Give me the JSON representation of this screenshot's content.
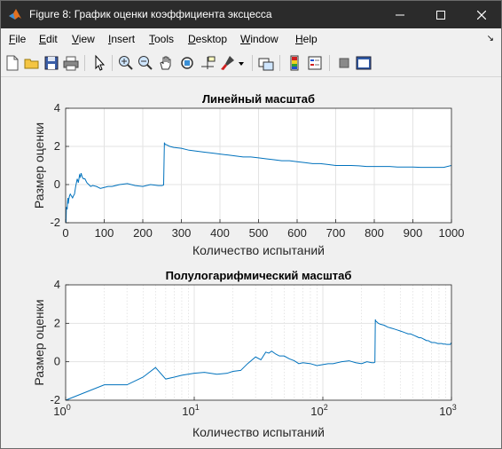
{
  "window": {
    "title": "Figure 8: График оценки коэффициента эксцесса",
    "controls": {
      "minimize": "—",
      "maximize": "☐",
      "close": "✕"
    }
  },
  "menu": {
    "items": [
      "File",
      "Edit",
      "View",
      "Insert",
      "Tools",
      "Desktop",
      "Window",
      "Help"
    ],
    "mnemonics": [
      "F",
      "E",
      "V",
      "I",
      "T",
      "D",
      "W",
      "H"
    ],
    "overflow_arrow": "↘"
  },
  "toolbar": {
    "icons": [
      "new-figure-icon",
      "open-file-icon",
      "save-icon",
      "print-icon",
      "pointer-icon",
      "zoom-in-icon",
      "zoom-out-icon",
      "pan-icon",
      "rotate-3d-icon",
      "data-cursor-icon",
      "brush-icon",
      "brush-dropdown-icon",
      "link-plot-icon",
      "insert-colorbar-icon",
      "insert-legend-icon",
      "hide-plot-tools-icon",
      "show-plot-tools-icon"
    ]
  },
  "colors": {
    "line": "#0072bd",
    "titlebar": "#2b2b2b",
    "background": "#f0f0f0"
  },
  "chart_data": [
    {
      "type": "line",
      "title": "Линейный масштаб",
      "xlabel": "Количество испытаний",
      "ylabel": "Размер оценки",
      "xlim": [
        0,
        1000
      ],
      "ylim": [
        -2,
        4
      ],
      "xscale": "linear",
      "grid": true,
      "xticks": [
        "0",
        "100",
        "200",
        "300",
        "400",
        "500",
        "600",
        "700",
        "800",
        "900",
        "1000"
      ],
      "yticks": [
        "-2",
        "0",
        "2",
        "4"
      ],
      "series": [
        {
          "x": [
            1,
            2,
            3,
            4,
            5,
            6,
            7,
            8,
            10,
            12,
            15,
            18,
            20,
            23,
            26,
            30,
            33,
            36,
            38,
            40,
            43,
            46,
            50,
            55,
            60,
            65,
            70,
            80,
            90,
            100,
            110,
            120,
            140,
            160,
            180,
            200,
            220,
            240,
            250,
            254,
            256,
            257,
            258,
            260,
            270,
            280,
            300,
            320,
            340,
            360,
            380,
            400,
            420,
            440,
            460,
            480,
            500,
            520,
            540,
            560,
            580,
            600,
            620,
            640,
            660,
            680,
            700,
            720,
            740,
            760,
            780,
            800,
            820,
            840,
            860,
            880,
            900,
            920,
            940,
            960,
            980,
            1000
          ],
          "y": [
            -2.0,
            -1.2,
            -1.2,
            -1.3,
            -0.9,
            -0.7,
            -1.0,
            -0.8,
            -0.6,
            -0.5,
            -0.6,
            -0.7,
            -0.6,
            -0.5,
            -0.1,
            0.3,
            0.1,
            0.5,
            0.4,
            0.6,
            0.4,
            0.3,
            0.3,
            0.1,
            0.0,
            -0.1,
            -0.05,
            -0.1,
            -0.2,
            -0.15,
            -0.1,
            -0.1,
            0.0,
            0.05,
            -0.05,
            -0.1,
            0.0,
            -0.05,
            -0.05,
            -0.02,
            2.2,
            2.15,
            2.1,
            2.1,
            2.0,
            1.95,
            1.9,
            1.8,
            1.75,
            1.7,
            1.65,
            1.6,
            1.55,
            1.5,
            1.45,
            1.45,
            1.4,
            1.35,
            1.3,
            1.25,
            1.25,
            1.2,
            1.15,
            1.1,
            1.1,
            1.05,
            1.0,
            1.0,
            1.0,
            0.98,
            0.95,
            0.95,
            0.95,
            0.95,
            0.92,
            0.92,
            0.92,
            0.9,
            0.9,
            0.9,
            0.9,
            1.0
          ]
        }
      ]
    },
    {
      "type": "line",
      "title": "Полулогарифмический масштаб",
      "xlabel": "Количество испытаний",
      "ylabel": "Размер оценки",
      "xlim": [
        1,
        1000
      ],
      "ylim": [
        -2,
        4
      ],
      "xscale": "log",
      "grid": true,
      "xticks": [
        "10^0",
        "10^1",
        "10^2",
        "10^3"
      ],
      "yticks": [
        "-2",
        "0",
        "2",
        "4"
      ],
      "series": [
        {
          "x": [
            1,
            2,
            3,
            4,
            5,
            6,
            7,
            8,
            10,
            12,
            15,
            18,
            20,
            23,
            26,
            30,
            33,
            36,
            38,
            40,
            43,
            46,
            50,
            55,
            60,
            65,
            70,
            80,
            90,
            100,
            110,
            120,
            140,
            160,
            180,
            200,
            220,
            240,
            250,
            254,
            256,
            257,
            258,
            260,
            270,
            280,
            300,
            320,
            340,
            360,
            380,
            400,
            420,
            440,
            460,
            480,
            500,
            520,
            540,
            560,
            580,
            600,
            620,
            640,
            660,
            680,
            700,
            720,
            740,
            760,
            780,
            800,
            820,
            840,
            860,
            880,
            900,
            920,
            940,
            960,
            980,
            1000
          ],
          "y": [
            -2.0,
            -1.2,
            -1.2,
            -0.8,
            -0.3,
            -0.9,
            -0.8,
            -0.7,
            -0.6,
            -0.55,
            -0.65,
            -0.6,
            -0.5,
            -0.45,
            -0.1,
            0.25,
            0.1,
            0.5,
            0.45,
            0.55,
            0.4,
            0.3,
            0.3,
            0.15,
            0.05,
            -0.1,
            -0.05,
            -0.1,
            -0.2,
            -0.15,
            -0.1,
            -0.1,
            0.0,
            0.05,
            -0.05,
            -0.1,
            0.0,
            -0.05,
            -0.05,
            -0.02,
            2.2,
            2.15,
            2.1,
            2.1,
            2.0,
            1.95,
            1.9,
            1.8,
            1.75,
            1.7,
            1.65,
            1.6,
            1.55,
            1.5,
            1.45,
            1.45,
            1.4,
            1.35,
            1.3,
            1.25,
            1.25,
            1.2,
            1.15,
            1.1,
            1.1,
            1.05,
            1.0,
            1.0,
            1.0,
            0.98,
            0.95,
            0.95,
            0.95,
            0.95,
            0.92,
            0.92,
            0.92,
            0.9,
            0.9,
            0.9,
            0.9,
            1.0
          ]
        }
      ]
    }
  ]
}
